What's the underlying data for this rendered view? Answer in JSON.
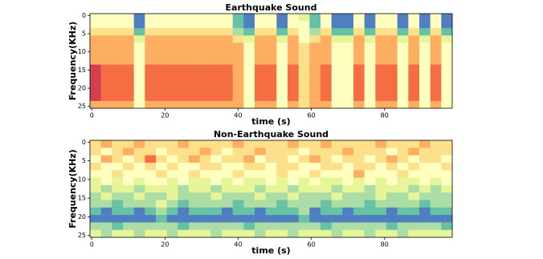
{
  "chart_data": [
    {
      "type": "heatmap",
      "title": "Earthquake Sound",
      "x_label": "time (s)",
      "y_label": "Frequency(KHz)",
      "x": [
        1,
        4,
        7,
        10,
        13,
        16,
        19,
        22,
        25,
        28,
        31,
        34,
        37,
        40,
        43,
        46,
        49,
        52,
        55,
        58,
        61,
        64,
        67,
        70,
        73,
        76,
        79,
        82,
        85,
        88,
        91,
        94,
        97
      ],
      "y": [
        0.5,
        2.5,
        4.5,
        6.5,
        8.5,
        10.5,
        12.5,
        14.5,
        16.5,
        18.5,
        20.5,
        22.5,
        24.5
      ],
      "z": [
        [
          5,
          5,
          5,
          5,
          9,
          5,
          5,
          5,
          5,
          5,
          5,
          5,
          5,
          8,
          9,
          5,
          5,
          9,
          5,
          6,
          8,
          5,
          9,
          9,
          5,
          9,
          5,
          5,
          9,
          5,
          9,
          5,
          9
        ],
        [
          5,
          5,
          5,
          5,
          9,
          5,
          5,
          5,
          5,
          5,
          5,
          5,
          5,
          8,
          9,
          5,
          5,
          9,
          5,
          5,
          8,
          5,
          9,
          9,
          5,
          9,
          5,
          5,
          9,
          5,
          9,
          5,
          9
        ],
        [
          4,
          4,
          4,
          4,
          8,
          4,
          4,
          4,
          4,
          4,
          4,
          4,
          4,
          7,
          8,
          4,
          4,
          8,
          4,
          5,
          7,
          4,
          8,
          8,
          4,
          8,
          4,
          4,
          8,
          4,
          8,
          4,
          8
        ],
        [
          3,
          3,
          3,
          3,
          6,
          3,
          3,
          3,
          3,
          3,
          3,
          3,
          3,
          4,
          6,
          3,
          3,
          6,
          3,
          5,
          4,
          3,
          6,
          6,
          3,
          6,
          3,
          3,
          6,
          3,
          6,
          3,
          6
        ],
        [
          3,
          3,
          3,
          3,
          5,
          3,
          3,
          3,
          3,
          3,
          3,
          3,
          3,
          3,
          5,
          3,
          3,
          5,
          3,
          4,
          3,
          3,
          5,
          5,
          3,
          5,
          3,
          3,
          5,
          3,
          5,
          3,
          5
        ],
        [
          3,
          3,
          3,
          3,
          5,
          3,
          3,
          3,
          3,
          3,
          3,
          3,
          3,
          3,
          5,
          3,
          3,
          5,
          3,
          4,
          3,
          3,
          5,
          5,
          3,
          5,
          3,
          3,
          5,
          3,
          5,
          3,
          5
        ],
        [
          3,
          3,
          3,
          3,
          5,
          3,
          3,
          3,
          3,
          3,
          3,
          3,
          3,
          3,
          5,
          3,
          3,
          5,
          3,
          4,
          3,
          3,
          5,
          5,
          3,
          5,
          3,
          3,
          5,
          3,
          5,
          3,
          5
        ],
        [
          1,
          2,
          2,
          2,
          5,
          2,
          2,
          2,
          2,
          2,
          2,
          2,
          2,
          3,
          5,
          2,
          2,
          5,
          2,
          4,
          3,
          2,
          5,
          5,
          2,
          5,
          2,
          2,
          5,
          2,
          5,
          2,
          5
        ],
        [
          1,
          2,
          2,
          2,
          5,
          2,
          2,
          2,
          2,
          2,
          2,
          2,
          2,
          3,
          5,
          2,
          2,
          5,
          2,
          4,
          3,
          2,
          5,
          5,
          2,
          5,
          2,
          2,
          5,
          2,
          5,
          2,
          5
        ],
        [
          1,
          2,
          2,
          2,
          5,
          2,
          2,
          2,
          2,
          2,
          2,
          2,
          2,
          3,
          5,
          2,
          2,
          5,
          2,
          4,
          3,
          2,
          5,
          5,
          2,
          5,
          2,
          2,
          5,
          2,
          5,
          2,
          5
        ],
        [
          1,
          2,
          2,
          2,
          5,
          2,
          2,
          2,
          2,
          2,
          2,
          2,
          2,
          3,
          5,
          2,
          2,
          5,
          2,
          4,
          3,
          2,
          5,
          5,
          2,
          5,
          2,
          2,
          5,
          2,
          5,
          2,
          5
        ],
        [
          1,
          2,
          2,
          2,
          5,
          2,
          2,
          2,
          2,
          2,
          2,
          2,
          2,
          3,
          5,
          2,
          2,
          5,
          2,
          4,
          3,
          2,
          5,
          5,
          2,
          5,
          2,
          2,
          5,
          2,
          5,
          2,
          5
        ],
        [
          3,
          3,
          3,
          3,
          5,
          3,
          3,
          3,
          3,
          3,
          3,
          3,
          3,
          3,
          5,
          3,
          3,
          5,
          3,
          4,
          3,
          3,
          5,
          5,
          3,
          5,
          3,
          3,
          5,
          3,
          5,
          3,
          5
        ]
      ],
      "colormap": [
        "#9e0142",
        "#d53e4f",
        "#f46d43",
        "#fdae61",
        "#fee08b",
        "#ffffbf",
        "#e6f598",
        "#abdda4",
        "#66c2a5",
        "#4f7fc0"
      ],
      "xlim": [
        -0.5,
        98.5
      ],
      "ylim": [
        25.5,
        -0.5
      ],
      "xticks": [
        0,
        20,
        40,
        60,
        80
      ],
      "yticks": [
        0,
        5,
        10,
        15,
        20,
        25
      ]
    },
    {
      "type": "heatmap",
      "title": "Non-Earthquake Sound",
      "x_label": "time (s)",
      "y_label": "Frequency(KHz)",
      "x": [
        1,
        4,
        7,
        10,
        13,
        16,
        19,
        22,
        25,
        28,
        31,
        34,
        37,
        40,
        43,
        46,
        49,
        52,
        55,
        58,
        61,
        64,
        67,
        70,
        73,
        76,
        79,
        82,
        85,
        88,
        91,
        94,
        97
      ],
      "y": [
        0.5,
        2.5,
        4.5,
        6.5,
        8.5,
        10.5,
        12.5,
        14.5,
        16.5,
        18.5,
        20.5,
        22.5,
        24.5
      ],
      "z": [
        [
          4,
          3,
          4,
          4,
          3,
          4,
          4,
          4,
          3,
          4,
          4,
          4,
          4,
          3,
          4,
          4,
          4,
          4,
          3,
          4,
          4,
          3,
          4,
          4,
          4,
          4,
          3,
          4,
          4,
          4,
          3,
          4,
          4
        ],
        [
          4,
          5,
          4,
          3,
          4,
          4,
          5,
          4,
          4,
          4,
          3,
          4,
          5,
          4,
          4,
          3,
          4,
          4,
          4,
          5,
          4,
          4,
          4,
          3,
          4,
          4,
          4,
          5,
          4,
          3,
          4,
          4,
          4
        ],
        [
          5,
          3,
          4,
          5,
          4,
          2,
          4,
          5,
          4,
          3,
          4,
          5,
          4,
          4,
          3,
          5,
          4,
          4,
          5,
          4,
          3,
          4,
          5,
          4,
          4,
          5,
          4,
          3,
          4,
          5,
          4,
          4,
          5
        ],
        [
          4,
          5,
          5,
          4,
          5,
          4,
          5,
          4,
          5,
          5,
          4,
          4,
          5,
          5,
          4,
          4,
          5,
          4,
          4,
          5,
          5,
          4,
          4,
          5,
          4,
          4,
          5,
          4,
          5,
          4,
          5,
          5,
          4
        ],
        [
          5,
          5,
          4,
          5,
          5,
          5,
          4,
          5,
          5,
          4,
          5,
          5,
          5,
          4,
          5,
          5,
          5,
          4,
          5,
          5,
          4,
          5,
          5,
          5,
          3,
          5,
          5,
          5,
          4,
          5,
          5,
          5,
          5
        ],
        [
          6,
          5,
          6,
          5,
          6,
          5,
          5,
          6,
          5,
          6,
          6,
          5,
          6,
          5,
          6,
          6,
          5,
          6,
          5,
          6,
          5,
          6,
          6,
          5,
          6,
          5,
          6,
          5,
          6,
          6,
          5,
          6,
          5
        ],
        [
          6,
          7,
          6,
          6,
          7,
          6,
          6,
          6,
          7,
          6,
          6,
          7,
          6,
          6,
          6,
          7,
          6,
          6,
          7,
          6,
          6,
          6,
          7,
          6,
          6,
          7,
          6,
          6,
          6,
          7,
          6,
          7,
          6
        ],
        [
          7,
          6,
          7,
          7,
          6,
          7,
          7,
          6,
          7,
          7,
          7,
          6,
          7,
          7,
          7,
          6,
          7,
          7,
          6,
          7,
          7,
          7,
          6,
          7,
          7,
          7,
          6,
          7,
          7,
          6,
          7,
          7,
          7
        ],
        [
          7,
          7,
          8,
          7,
          7,
          7,
          6,
          7,
          8,
          7,
          7,
          7,
          7,
          8,
          7,
          7,
          7,
          8,
          7,
          7,
          7,
          8,
          7,
          7,
          7,
          8,
          7,
          7,
          7,
          7,
          8,
          7,
          7
        ],
        [
          8,
          9,
          8,
          8,
          9,
          8,
          7,
          8,
          9,
          8,
          8,
          8,
          9,
          8,
          8,
          9,
          8,
          8,
          8,
          7,
          9,
          8,
          8,
          9,
          8,
          8,
          8,
          9,
          8,
          8,
          9,
          8,
          8
        ],
        [
          9,
          9,
          9,
          9,
          9,
          9,
          8,
          9,
          9,
          9,
          9,
          9,
          9,
          9,
          9,
          9,
          9,
          9,
          9,
          8,
          9,
          9,
          9,
          9,
          9,
          9,
          9,
          9,
          9,
          9,
          9,
          9,
          9
        ],
        [
          7,
          7,
          8,
          7,
          7,
          7,
          7,
          7,
          8,
          7,
          7,
          7,
          7,
          7,
          8,
          7,
          7,
          7,
          7,
          7,
          7,
          8,
          7,
          7,
          7,
          7,
          7,
          8,
          7,
          7,
          7,
          7,
          8
        ],
        [
          6,
          7,
          6,
          6,
          7,
          6,
          6,
          7,
          6,
          6,
          6,
          7,
          6,
          6,
          6,
          7,
          6,
          6,
          7,
          6,
          6,
          6,
          7,
          6,
          6,
          7,
          6,
          6,
          7,
          6,
          6,
          6,
          6
        ]
      ],
      "colormap": [
        "#9e0142",
        "#d53e4f",
        "#f46d43",
        "#fdae61",
        "#fee08b",
        "#ffffbf",
        "#e6f598",
        "#abdda4",
        "#66c2a5",
        "#4f7fc0"
      ],
      "xlim": [
        -0.5,
        98.5
      ],
      "ylim": [
        25.5,
        -0.5
      ],
      "xticks": [
        0,
        20,
        40,
        60,
        80
      ],
      "yticks": [
        0,
        5,
        10,
        15,
        20,
        25
      ]
    }
  ]
}
